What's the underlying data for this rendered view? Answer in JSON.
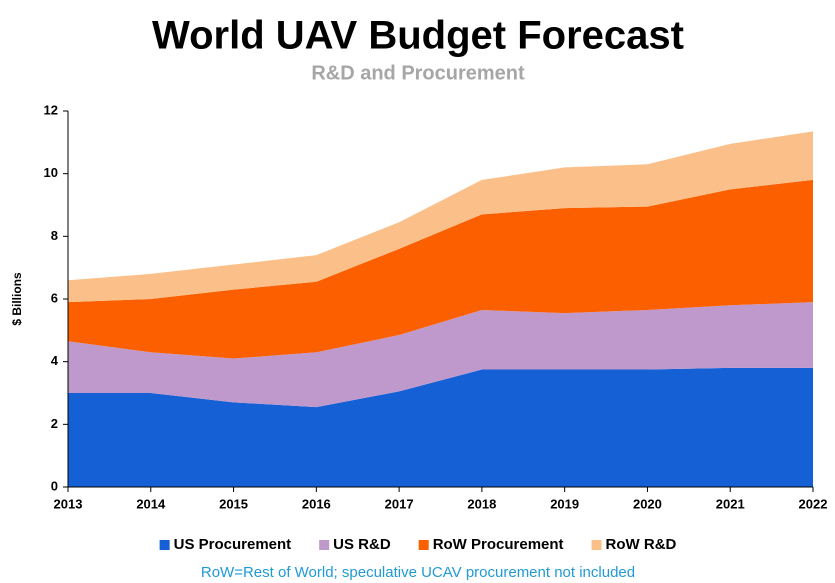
{
  "chart_data": {
    "type": "stacked_area",
    "title": "World UAV Budget Forecast",
    "subtitle": "R&D and Procurement",
    "y_axis_label": "$ Billions",
    "annotation": "RoW=Rest of World; speculative UCAV procurement not included",
    "categories": [
      "2013",
      "2014",
      "2015",
      "2016",
      "2017",
      "2018",
      "2019",
      "2020",
      "2021",
      "2022"
    ],
    "series": [
      {
        "name": "US Procurement",
        "color": "#1560d4",
        "values": [
          3.0,
          3.0,
          2.7,
          2.55,
          3.05,
          3.75,
          3.75,
          3.75,
          3.8,
          3.8
        ]
      },
      {
        "name": "US R&D",
        "color": "#bf99cc",
        "values": [
          1.65,
          1.3,
          1.4,
          1.75,
          1.8,
          1.9,
          1.8,
          1.9,
          2.0,
          2.1
        ]
      },
      {
        "name": "RoW Procurement",
        "color": "#fb5f00",
        "values": [
          1.25,
          1.7,
          2.2,
          2.25,
          2.75,
          3.05,
          3.35,
          3.3,
          3.7,
          3.9
        ]
      },
      {
        "name": "RoW R&D",
        "color": "#fbc08a",
        "values": [
          0.7,
          0.8,
          0.8,
          0.85,
          0.85,
          1.1,
          1.3,
          1.35,
          1.45,
          1.55
        ]
      }
    ],
    "ylim": [
      0,
      12
    ],
    "yticks": [
      0,
      2,
      4,
      6,
      8,
      10,
      12
    ],
    "grid": false,
    "legend": "bottom"
  }
}
